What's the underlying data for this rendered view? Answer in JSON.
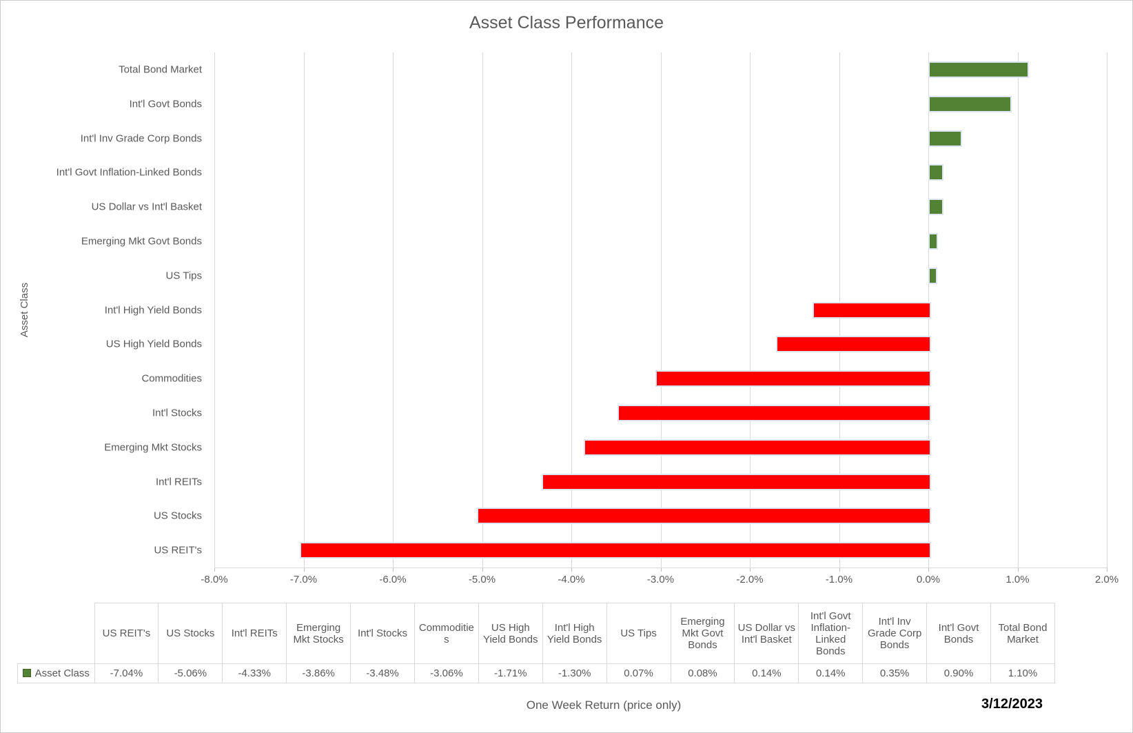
{
  "chart": {
    "title": "Asset Class Performance",
    "y_axis_title": "Asset Class",
    "x_axis_title": "One Week Return (price only)",
    "date": "3/12/2023",
    "legend_label": "Asset Class"
  },
  "colors": {
    "positive_bar": "#548235",
    "negative_bar": "#ff0000",
    "bar_outline": "#dde6f2",
    "gridline": "#d9d9d9",
    "text_gray": "#595959"
  },
  "chart_data": {
    "type": "bar",
    "orientation": "horizontal",
    "title": "Asset Class Performance",
    "xlabel": "One Week Return (price only)",
    "ylabel": "Asset Class",
    "xlim": [
      -8.0,
      2.0
    ],
    "grid": true,
    "x_tick_values": [
      -8,
      -7,
      -6,
      -5,
      -4,
      -3,
      -2,
      -1,
      0,
      1,
      2
    ],
    "x_tick_labels": [
      "-8.0%",
      "-7.0%",
      "-6.0%",
      "-5.0%",
      "-4.0%",
      "-3.0%",
      "-2.0%",
      "-1.0%",
      "0.0%",
      "1.0%",
      "2.0%"
    ],
    "categories": [
      "Total Bond Market",
      "Int'l Govt Bonds",
      "Int'l Inv Grade Corp Bonds",
      "Int'l Govt Inflation-Linked Bonds",
      "US Dollar vs Int'l Basket",
      "Emerging Mkt Govt Bonds",
      "US Tips",
      "Int'l High Yield Bonds",
      "US High Yield Bonds",
      "Commodities",
      "Int'l Stocks",
      "Emerging Mkt Stocks",
      "Int'l REITs",
      "US Stocks",
      "US REIT's"
    ],
    "values": [
      1.1,
      0.9,
      0.35,
      0.14,
      0.14,
      0.08,
      0.07,
      -1.3,
      -1.71,
      -3.06,
      -3.48,
      -3.86,
      -4.33,
      -5.06,
      -7.04
    ],
    "legend": [
      {
        "label": "Asset Class",
        "color": "#548235"
      }
    ],
    "legend_position": "table-left",
    "table": {
      "headers": [
        "US REIT's",
        "US Stocks",
        "Int'l REITs",
        "Emerging Mkt Stocks",
        "Int'l Stocks",
        "Commodities",
        "US High Yield Bonds",
        "Int'l High Yield Bonds",
        "US Tips",
        "Emerging Mkt Govt Bonds",
        "US Dollar vs Int'l Basket",
        "Int'l Govt Inflation-Linked Bonds",
        "Int'l Inv Grade Corp Bonds",
        "Int'l Govt Bonds",
        "Total Bond Market"
      ],
      "values": [
        "-7.04%",
        "-5.06%",
        "-4.33%",
        "-3.86%",
        "-3.48%",
        "-3.06%",
        "-1.71%",
        "-1.30%",
        "0.07%",
        "0.08%",
        "0.14%",
        "0.14%",
        "0.35%",
        "0.90%",
        "1.10%"
      ]
    }
  }
}
